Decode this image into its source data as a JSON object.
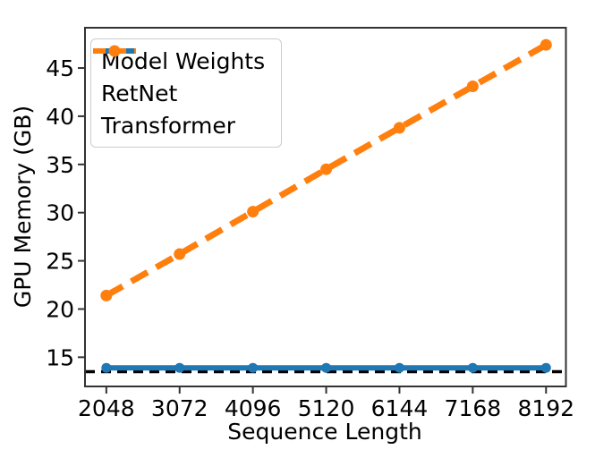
{
  "figure": {
    "background": "#ffffff",
    "axis_color": "#333333",
    "text_color": "#000000",
    "legend_border_color": "#cccccc"
  },
  "chart_data": {
    "type": "line",
    "title": "",
    "xlabel": "Sequence Length",
    "ylabel": "GPU Memory (GB)",
    "x": [
      2048,
      3072,
      4096,
      5120,
      6144,
      7168,
      8192
    ],
    "xtick_labels": [
      "2048",
      "3072",
      "4096",
      "5120",
      "6144",
      "7168",
      "8192"
    ],
    "yticks": [
      15,
      20,
      25,
      30,
      35,
      40,
      45
    ],
    "xlim": [
      1750,
      8470
    ],
    "ylim": [
      11.97,
      49.18
    ],
    "grid": false,
    "legend_position": "upper-left",
    "series": [
      {
        "name": "Model Weights",
        "color": "#000000",
        "style": "dashed",
        "marker": false,
        "hline": 13.5,
        "linewidth": 3.5,
        "dash": "11 7"
      },
      {
        "name": "RetNet",
        "color": "#1f77b4",
        "style": "solid",
        "marker": true,
        "marker_radius": 5.5,
        "linewidth": 6,
        "dash": "",
        "values": [
          13.9,
          13.9,
          13.9,
          13.9,
          13.9,
          13.9,
          13.9
        ]
      },
      {
        "name": "Transformer",
        "color": "#ff7f0e",
        "style": "dashed",
        "marker": true,
        "marker_radius": 6.5,
        "linewidth": 7,
        "dash": "21 11",
        "values": [
          21.4,
          25.7,
          30.1,
          34.5,
          38.8,
          43.1,
          47.4
        ]
      }
    ]
  }
}
